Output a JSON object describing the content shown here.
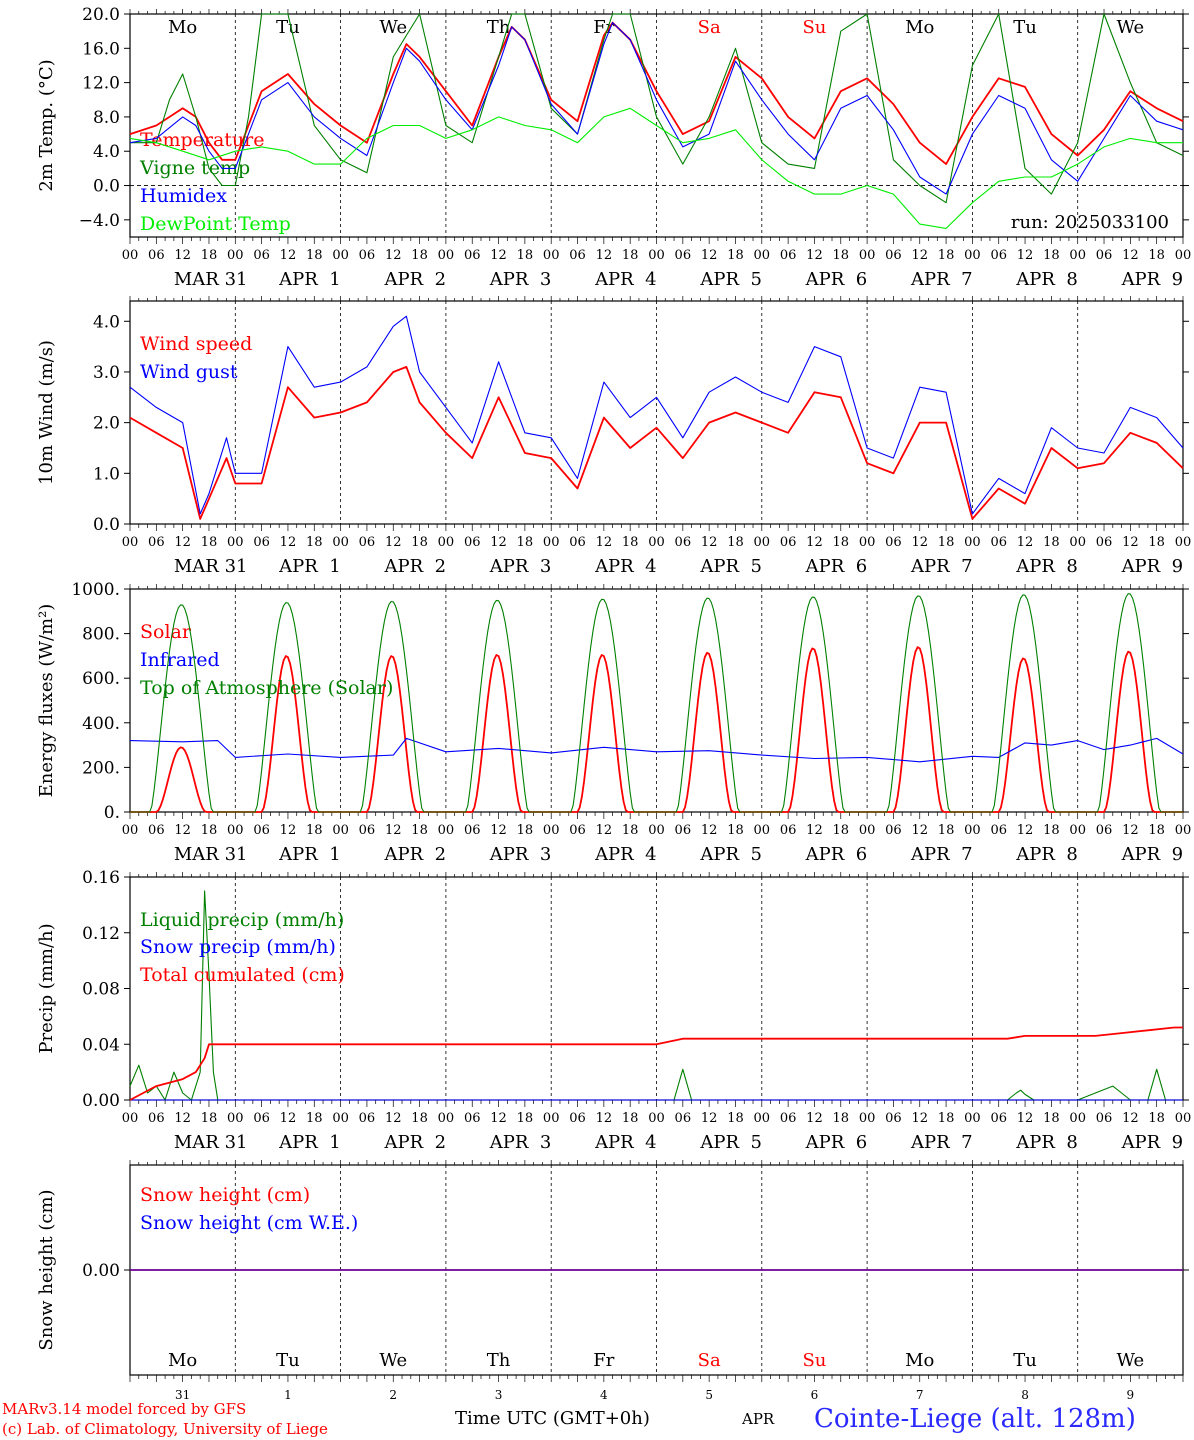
{
  "days": [
    "Mo",
    "Tu",
    "We",
    "Th",
    "Fr",
    "Sa",
    "Su",
    "Mo",
    "Tu",
    "We"
  ],
  "weekend_days": [
    5,
    6
  ],
  "dates": [
    "MAR 31",
    "APR  1",
    "APR  2",
    "APR  3",
    "APR  4",
    "APR  5",
    "APR  6",
    "APR  7",
    "APR  8",
    "APR  9"
  ],
  "date_numbers": [
    "31",
    "1",
    "2",
    "3",
    "4",
    "5",
    "6",
    "7",
    "8",
    "9"
  ],
  "hour_labels": [
    "00",
    "06",
    "12",
    "18"
  ],
  "final_hour_label": "00",
  "run_label": "run: 2025033100",
  "footer": {
    "model": "MARv3.14 model forced by GFS",
    "copyright": "(c) Lab. of Climatology, University of Liege",
    "axis_title": "Time UTC (GMT+0h)",
    "month": "APR",
    "station": "Cointe-Liege (alt. 128m)"
  },
  "colors": {
    "red": "#ff0000",
    "blue": "#0000ff",
    "darkgreen": "#008000",
    "lightgreen": "#00ee00"
  },
  "chart_data": [
    {
      "type": "line",
      "ylabel": "2m Temp. (°C)",
      "ylim": [
        -6,
        20
      ],
      "yticks": [
        20,
        16,
        12,
        8,
        4,
        0,
        -4
      ],
      "ytick_labels": [
        "20.0",
        "16.0",
        "12.0",
        "8.0",
        "4.0",
        "0.0",
        "−4.0"
      ],
      "zero_line": true,
      "x_unit": "hours since 2025-03-31 00 UTC",
      "series": [
        {
          "name": "Temperature",
          "color": "red",
          "x": [
            0,
            6,
            12,
            15,
            18,
            21,
            24,
            30,
            36,
            42,
            48,
            54,
            60,
            63,
            66,
            72,
            78,
            84,
            87,
            90,
            96,
            102,
            108,
            110,
            114,
            120,
            126,
            132,
            138,
            144,
            150,
            156,
            162,
            168,
            174,
            180,
            186,
            192,
            198,
            204,
            210,
            216,
            222,
            228,
            234,
            240
          ],
          "values": [
            6.0,
            7.0,
            9.0,
            8.0,
            5.0,
            3.0,
            3.0,
            11.0,
            13.0,
            9.5,
            7.0,
            5.0,
            13.0,
            16.5,
            15.0,
            11.0,
            7.0,
            15.0,
            18.5,
            17.0,
            10.0,
            7.5,
            17.5,
            19.0,
            17.0,
            11.0,
            6.0,
            7.5,
            15.0,
            12.5,
            8.0,
            5.5,
            11.0,
            12.5,
            9.5,
            5.0,
            2.5,
            8.0,
            12.5,
            11.5,
            6.0,
            3.5,
            6.5,
            11.0,
            9.0,
            7.5
          ]
        },
        {
          "name": "Vigne temp",
          "color": "darkgreen",
          "x": [
            0,
            6,
            9,
            12,
            15,
            18,
            21,
            24,
            27,
            30,
            36,
            42,
            48,
            54,
            60,
            63,
            66,
            72,
            78,
            84,
            87,
            90,
            96,
            102,
            108,
            110,
            114,
            120,
            126,
            132,
            138,
            144,
            150,
            156,
            162,
            168,
            174,
            180,
            186,
            192,
            198,
            204,
            210,
            216,
            222,
            228,
            234,
            240
          ],
          "values": [
            5.0,
            5.0,
            10.0,
            13.0,
            8.0,
            2.0,
            0.0,
            0.0,
            8.0,
            20.0,
            20.0,
            7.0,
            3.0,
            1.5,
            15.0,
            17.5,
            20.0,
            7.0,
            5.0,
            15.0,
            20.0,
            20.0,
            9.0,
            6.0,
            17.0,
            20.0,
            20.0,
            8.0,
            2.5,
            8.0,
            16.0,
            5.0,
            2.5,
            2.0,
            18.0,
            20.0,
            3.0,
            0.0,
            -2.0,
            14.0,
            20.0,
            2.0,
            -1.0,
            5.0,
            20.0,
            12.0,
            5.0,
            3.5
          ]
        },
        {
          "name": "Humidex",
          "color": "blue",
          "x": [
            0,
            6,
            12,
            15,
            18,
            21,
            24,
            30,
            36,
            42,
            48,
            54,
            60,
            63,
            66,
            72,
            78,
            84,
            87,
            90,
            96,
            102,
            108,
            110,
            114,
            120,
            126,
            132,
            138,
            144,
            150,
            156,
            162,
            168,
            174,
            180,
            186,
            192,
            198,
            204,
            210,
            216,
            222,
            228,
            234,
            240
          ],
          "values": [
            5.0,
            5.5,
            8.0,
            7.0,
            4.0,
            2.0,
            2.0,
            10.0,
            12.0,
            8.0,
            5.5,
            3.5,
            12.0,
            16.0,
            14.5,
            10.0,
            6.5,
            14.0,
            18.5,
            17.0,
            9.5,
            6.0,
            16.5,
            19.0,
            17.0,
            10.0,
            4.5,
            6.0,
            14.5,
            10.0,
            6.0,
            3.0,
            9.0,
            10.5,
            6.5,
            1.0,
            -1.0,
            6.0,
            10.5,
            9.0,
            3.0,
            0.5,
            5.5,
            10.5,
            7.5,
            6.5
          ]
        },
        {
          "name": "DewPoint Temp",
          "color": "lightgreen",
          "x": [
            0,
            6,
            12,
            18,
            24,
            30,
            36,
            42,
            48,
            54,
            60,
            66,
            72,
            78,
            84,
            90,
            96,
            102,
            108,
            114,
            120,
            126,
            132,
            138,
            144,
            150,
            156,
            162,
            168,
            174,
            180,
            186,
            192,
            198,
            204,
            210,
            216,
            222,
            228,
            234,
            240
          ],
          "values": [
            5.5,
            5.0,
            4.0,
            3.0,
            4.0,
            4.5,
            4.0,
            2.5,
            2.5,
            5.5,
            7.0,
            7.0,
            5.5,
            6.5,
            8.0,
            7.0,
            6.5,
            5.0,
            8.0,
            9.0,
            7.0,
            5.0,
            5.5,
            6.5,
            3.0,
            0.5,
            -1.0,
            -1.0,
            0.0,
            -1.0,
            -4.5,
            -5.0,
            -2.0,
            0.5,
            1.0,
            1.0,
            2.5,
            4.5,
            5.5,
            5.0,
            5.0
          ]
        }
      ]
    },
    {
      "type": "line",
      "ylabel": "10m Wind (m/s)",
      "ylim": [
        0,
        4.4
      ],
      "yticks": [
        4,
        3,
        2,
        1,
        0
      ],
      "ytick_labels": [
        "4.0",
        "3.0",
        "2.0",
        "1.0",
        "0.0"
      ],
      "x_unit": "hours since 2025-03-31 00 UTC",
      "series": [
        {
          "name": "Wind speed",
          "color": "red",
          "x": [
            0,
            6,
            12,
            16,
            18,
            22,
            24,
            30,
            36,
            42,
            48,
            54,
            60,
            63,
            66,
            72,
            78,
            84,
            90,
            96,
            102,
            108,
            114,
            120,
            126,
            132,
            138,
            144,
            150,
            156,
            162,
            168,
            174,
            180,
            186,
            192,
            198,
            204,
            210,
            216,
            222,
            228,
            234,
            240
          ],
          "values": [
            2.1,
            1.8,
            1.5,
            0.1,
            0.5,
            1.3,
            0.8,
            0.8,
            2.7,
            2.1,
            2.2,
            2.4,
            3.0,
            3.1,
            2.4,
            1.8,
            1.3,
            2.5,
            1.4,
            1.3,
            0.7,
            2.1,
            1.5,
            1.9,
            1.3,
            2.0,
            2.2,
            2.0,
            1.8,
            2.6,
            2.5,
            1.2,
            1.0,
            2.0,
            2.0,
            0.1,
            0.7,
            0.4,
            1.5,
            1.1,
            1.2,
            1.8,
            1.6,
            1.1
          ]
        },
        {
          "name": "Wind gust",
          "color": "blue",
          "x": [
            0,
            6,
            12,
            16,
            18,
            22,
            24,
            30,
            36,
            42,
            48,
            54,
            60,
            63,
            66,
            72,
            78,
            84,
            90,
            96,
            102,
            108,
            114,
            120,
            126,
            132,
            138,
            144,
            150,
            156,
            162,
            168,
            174,
            180,
            186,
            192,
            198,
            204,
            210,
            216,
            222,
            228,
            234,
            240
          ],
          "values": [
            2.7,
            2.3,
            2.0,
            0.2,
            0.6,
            1.7,
            1.0,
            1.0,
            3.5,
            2.7,
            2.8,
            3.1,
            3.9,
            4.1,
            3.0,
            2.3,
            1.6,
            3.2,
            1.8,
            1.7,
            0.9,
            2.8,
            2.1,
            2.5,
            1.7,
            2.6,
            2.9,
            2.6,
            2.4,
            3.5,
            3.3,
            1.5,
            1.3,
            2.7,
            2.6,
            0.2,
            0.9,
            0.6,
            1.9,
            1.5,
            1.4,
            2.3,
            2.1,
            1.5
          ]
        }
      ]
    },
    {
      "type": "line",
      "ylabel": "Energy fluxes (W/m²)",
      "ylim": [
        0,
        1000
      ],
      "yticks": [
        1000,
        800,
        600,
        400,
        200,
        0
      ],
      "ytick_labels": [
        "1000.",
        "800.",
        "600.",
        "400.",
        "200.",
        "0."
      ],
      "x_unit": "hours since 2025-03-31 00 UTC",
      "series": [
        {
          "name": "Solar",
          "color": "red",
          "daily_peak": [
            290,
            700,
            700,
            705,
            705,
            715,
            735,
            740,
            690,
            720
          ]
        },
        {
          "name": "Infrared",
          "color": "blue",
          "x": [
            0,
            12,
            20,
            24,
            36,
            48,
            60,
            63,
            72,
            84,
            96,
            108,
            120,
            132,
            144,
            156,
            168,
            180,
            192,
            198,
            204,
            210,
            216,
            222,
            228,
            234,
            240
          ],
          "values": [
            320,
            315,
            320,
            245,
            260,
            245,
            255,
            330,
            270,
            285,
            265,
            290,
            270,
            275,
            255,
            240,
            245,
            225,
            250,
            245,
            310,
            300,
            320,
            280,
            300,
            330,
            260
          ]
        },
        {
          "name": "Top of Atmosphere (Solar)",
          "color": "darkgreen",
          "daily_peak": [
            930,
            940,
            945,
            950,
            955,
            960,
            965,
            970,
            975,
            980
          ]
        }
      ]
    },
    {
      "type": "line",
      "ylabel": "Precip (mm/h)",
      "ylim": [
        0,
        0.16
      ],
      "yticks": [
        0.16,
        0.12,
        0.08,
        0.04,
        0.0
      ],
      "ytick_labels": [
        "0.16",
        "0.12",
        "0.08",
        "0.04",
        "0.00"
      ],
      "x_unit": "hours since 2025-03-31 00 UTC",
      "series": [
        {
          "name": "Liquid precip (mm/h)",
          "color": "darkgreen",
          "x": [
            0,
            2,
            4,
            6,
            8,
            10,
            12,
            14,
            16,
            17,
            18,
            19,
            20,
            30,
            120,
            124,
            126,
            128,
            130,
            200,
            202,
            203,
            204,
            206,
            208,
            210,
            212,
            214,
            216,
            220,
            224,
            226,
            228,
            232,
            234,
            236,
            238
          ],
          "values": [
            0.01,
            0.025,
            0.005,
            0.01,
            0.0,
            0.02,
            0.005,
            0.0,
            0.02,
            0.15,
            0.09,
            0.02,
            0.0,
            0.0,
            0.0,
            0.0,
            0.022,
            0.0,
            0.0,
            0.0,
            0.005,
            0.007,
            0.004,
            0.0,
            0.0,
            0.0,
            0.0,
            0.0,
            0.0,
            0.005,
            0.01,
            0.005,
            0.0,
            0.0,
            0.022,
            0.0,
            0.0
          ]
        },
        {
          "name": "Snow precip (mm/h)",
          "color": "blue",
          "x": [
            0,
            240
          ],
          "values": [
            0.0,
            0.0
          ]
        },
        {
          "name": "Total cumulated (cm)",
          "color": "red",
          "x": [
            0,
            6,
            12,
            15,
            17,
            18,
            30,
            120,
            126,
            132,
            200,
            204,
            210,
            220,
            226,
            232,
            238,
            240
          ],
          "values": [
            0.0,
            0.01,
            0.015,
            0.02,
            0.03,
            0.04,
            0.04,
            0.04,
            0.044,
            0.044,
            0.044,
            0.046,
            0.046,
            0.046,
            0.048,
            0.05,
            0.052,
            0.052
          ]
        }
      ]
    },
    {
      "type": "line",
      "ylabel": "Snow height (cm)",
      "ylim": [
        -1,
        1
      ],
      "yticks": [
        0
      ],
      "ytick_labels": [
        "0.00"
      ],
      "x_unit": "hours since 2025-03-31 00 UTC",
      "series": [
        {
          "name": "Snow height (cm)",
          "color": "red",
          "x": [
            0,
            240
          ],
          "values": [
            0,
            0
          ]
        },
        {
          "name": "Snow height (cm W.E.)",
          "color": "blue",
          "x": [
            0,
            240
          ],
          "values": [
            0,
            0
          ]
        }
      ]
    }
  ]
}
